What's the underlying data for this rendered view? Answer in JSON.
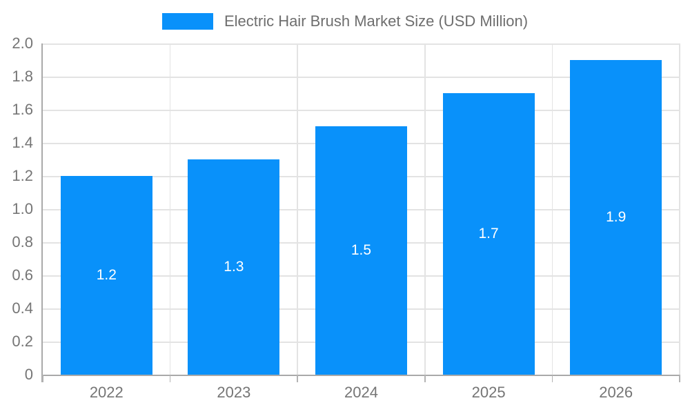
{
  "chart_data": {
    "type": "bar",
    "title": "Electric Hair Brush Market Size (USD Million)",
    "categories": [
      "2022",
      "2023",
      "2024",
      "2025",
      "2026"
    ],
    "values": [
      1.2,
      1.3,
      1.5,
      1.7,
      1.9
    ],
    "value_labels": [
      "1.2",
      "1.3",
      "1.5",
      "1.7",
      "1.9"
    ],
    "xlabel": "",
    "ylabel": "",
    "ylim": [
      0,
      2.0
    ],
    "ytick_step": 0.2,
    "ytick_labels": [
      "0",
      "0.2",
      "0.4",
      "0.6",
      "0.8",
      "1.0",
      "1.2",
      "1.4",
      "1.6",
      "1.8",
      "2.0"
    ],
    "grid": true,
    "legend_position": "top-center",
    "colors": {
      "bar": "#0991FA",
      "grid": "#E3E3E3",
      "axis": "#A9A9A9",
      "tick_text": "#757575",
      "title_text": "#6E6E6E",
      "data_label": "#FFFFFF",
      "background": "#FFFFFF"
    }
  }
}
